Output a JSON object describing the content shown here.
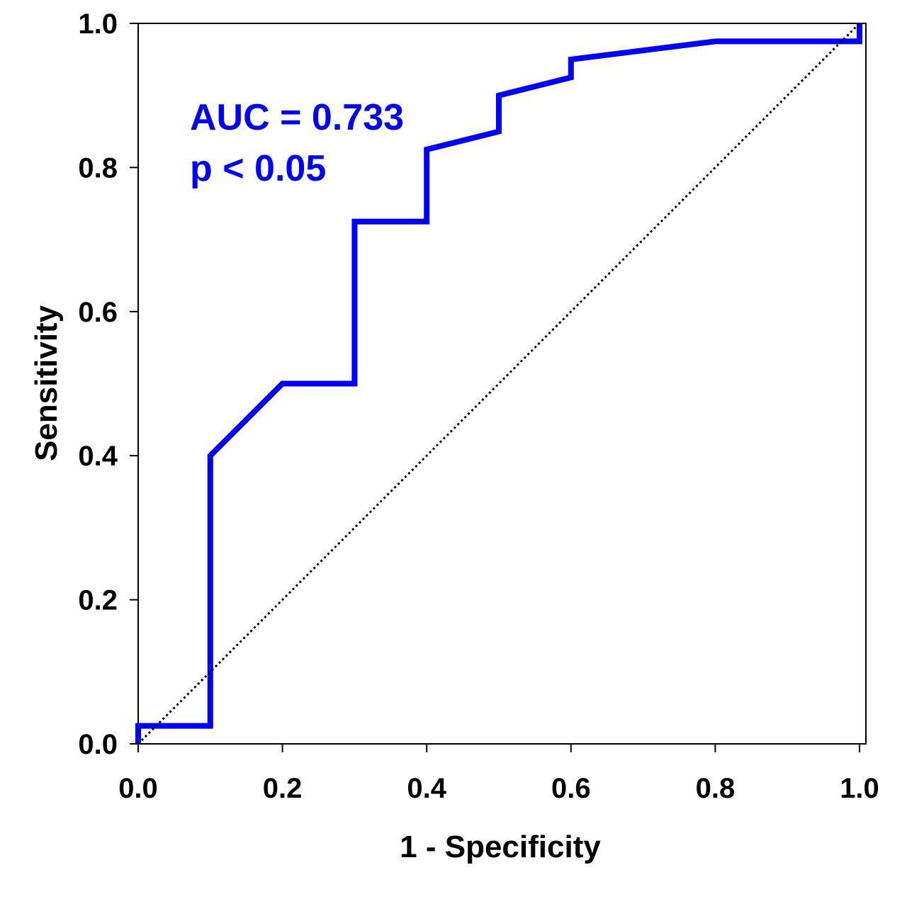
{
  "chart_data": {
    "type": "line",
    "title": "",
    "xlabel": "1 - Specificity",
    "ylabel": "Sensitivity",
    "xlim": [
      0,
      1
    ],
    "ylim": [
      0,
      1
    ],
    "x_ticks": [
      "0.0",
      "0.2",
      "0.4",
      "0.6",
      "0.8",
      "1.0"
    ],
    "y_ticks": [
      "0.0",
      "0.2",
      "0.4",
      "0.6",
      "0.8",
      "1.0"
    ],
    "grid": false,
    "legend": "none",
    "annotations": [
      "AUC = 0.733",
      "p < 0.05"
    ],
    "series": [
      {
        "style": "solid",
        "color": "#0000ff",
        "x": [
          0.0,
          0.0,
          0.1,
          0.1,
          0.2,
          0.3,
          0.3,
          0.4,
          0.4,
          0.5,
          0.5,
          0.6,
          0.6,
          0.8,
          1.0,
          1.0
        ],
        "y": [
          0.0,
          0.025,
          0.025,
          0.4,
          0.5,
          0.5,
          0.725,
          0.725,
          0.825,
          0.85,
          0.9,
          0.925,
          0.95,
          0.975,
          0.975,
          1.0
        ]
      },
      {
        "style": "dotted",
        "color": "#000000",
        "x": [
          0.0,
          1.0
        ],
        "y": [
          0.0,
          1.0
        ]
      }
    ]
  }
}
